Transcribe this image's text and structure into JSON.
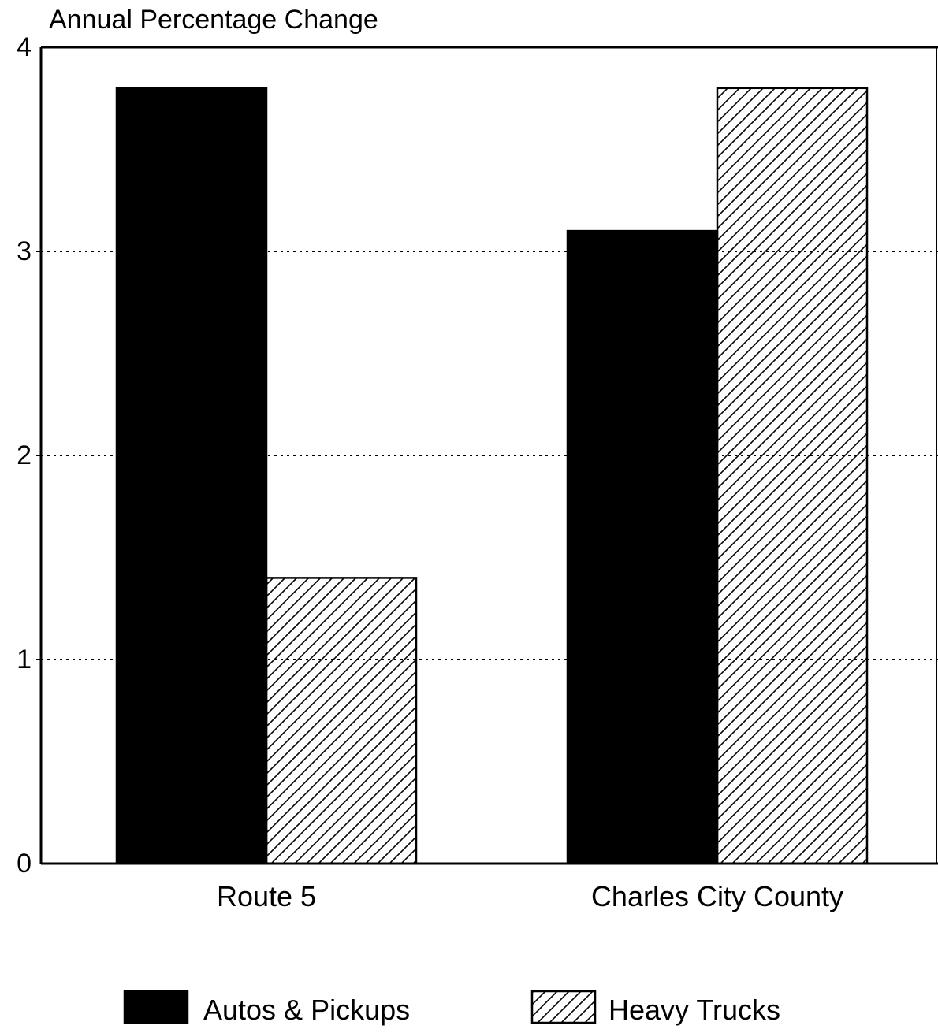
{
  "chart_data": {
    "type": "bar",
    "ylabel": "Annual Percentage Change",
    "categories": [
      "Route 5",
      "Charles City County"
    ],
    "series": [
      {
        "name": "Autos & Pickups",
        "values": [
          3.8,
          3.1
        ],
        "fill": "solid",
        "color": "#000000"
      },
      {
        "name": "Heavy Trucks",
        "values": [
          1.4,
          3.8
        ],
        "fill": "hatched",
        "color": "#000000"
      }
    ],
    "ylim": [
      0,
      4
    ],
    "yticks": [
      "0",
      "1",
      "2",
      "3",
      "4"
    ],
    "grid": true,
    "legend_position": "bottom"
  }
}
